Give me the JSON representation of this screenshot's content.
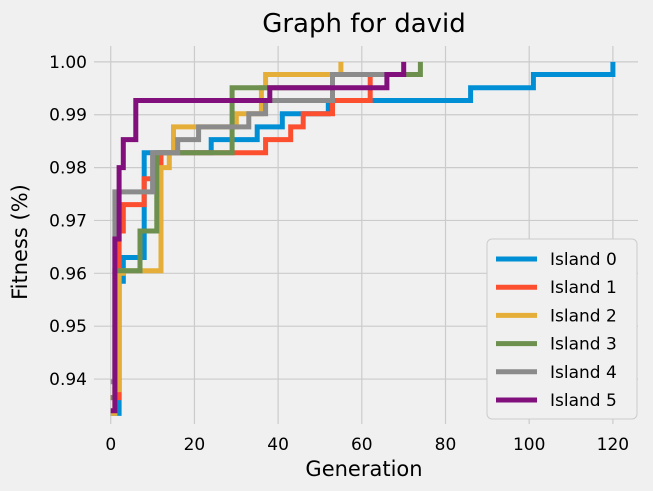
{
  "chart_data": {
    "type": "line",
    "title": "Graph for david",
    "xlabel": "Generation",
    "ylabel": "Fitness (%)",
    "xlim": [
      -4,
      126
    ],
    "ylim": [
      0.9315,
      1.003
    ],
    "xticks": [
      0,
      20,
      40,
      60,
      80,
      100,
      120
    ],
    "yticks": [
      0.94,
      0.95,
      0.96,
      0.97,
      0.98,
      0.99,
      1.0
    ],
    "ytick_labels": [
      "0.94",
      "0.95",
      "0.96",
      "0.97",
      "0.98",
      "0.99",
      "1.00"
    ],
    "grid": true,
    "legend_position": "lower-right",
    "series": [
      {
        "name": "Island 0",
        "color": "#008fd5",
        "x": [
          0,
          1,
          2,
          3,
          6,
          8,
          10,
          24,
          35,
          41,
          51,
          52,
          85,
          86,
          100,
          101,
          119,
          120
        ],
        "y": [
          0.9335,
          0.9335,
          0.9585,
          0.963,
          0.963,
          0.9828,
          0.9828,
          0.9853,
          0.9877,
          0.9902,
          0.9902,
          0.9927,
          0.9927,
          0.9951,
          0.9951,
          0.9976,
          0.9976,
          1.0
        ]
      },
      {
        "name": "Island 1",
        "color": "#fc4f30",
        "x": [
          0,
          1,
          2,
          3,
          6,
          8,
          10,
          12,
          36,
          37,
          41,
          43,
          46,
          51,
          53,
          61,
          62
        ],
        "y": [
          0.9365,
          0.9365,
          0.968,
          0.973,
          0.973,
          0.9779,
          0.9779,
          0.9828,
          0.9828,
          0.9853,
          0.9853,
          0.9877,
          0.9902,
          0.9902,
          0.9927,
          0.9927,
          0.9976
        ]
      },
      {
        "name": "Island 2",
        "color": "#e5ae38",
        "x": [
          0,
          1,
          2,
          3,
          12,
          14,
          15,
          28,
          30,
          34,
          36,
          37,
          54,
          55
        ],
        "y": [
          0.9335,
          0.938,
          0.96,
          0.9605,
          0.98,
          0.9828,
          0.9877,
          0.9877,
          0.9902,
          0.9902,
          0.9951,
          0.9976,
          0.9976,
          1.0
        ]
      },
      {
        "name": "Island 3",
        "color": "#6d904f",
        "x": [
          0,
          1,
          2,
          6,
          7,
          10,
          11,
          28,
          29,
          36,
          37,
          52,
          53,
          73,
          74
        ],
        "y": [
          0.9365,
          0.9605,
          0.9605,
          0.9605,
          0.968,
          0.968,
          0.9828,
          0.9828,
          0.9951,
          0.9951,
          0.9951,
          0.9951,
          0.9976,
          0.9976,
          1.0
        ]
      },
      {
        "name": "Island 4",
        "color": "#8b8b8b",
        "x": [
          0,
          1,
          8,
          10,
          16,
          21,
          28,
          31,
          33,
          37,
          51,
          53,
          59,
          61,
          68,
          70
        ],
        "y": [
          0.9395,
          0.9754,
          0.9754,
          0.9828,
          0.9853,
          0.9877,
          0.9877,
          0.9877,
          0.9902,
          0.9927,
          0.9927,
          0.9976,
          0.9976,
          0.9976,
          0.9976,
          0.9976
        ]
      },
      {
        "name": "Island 5",
        "color": "#810f7c",
        "x": [
          0,
          1,
          2,
          3,
          5,
          6,
          37,
          38,
          64,
          66,
          69,
          70
        ],
        "y": [
          0.934,
          0.9665,
          0.98,
          0.9853,
          0.9853,
          0.9927,
          0.9927,
          0.9951,
          0.9951,
          0.9976,
          0.9976,
          1.0
        ]
      }
    ]
  }
}
